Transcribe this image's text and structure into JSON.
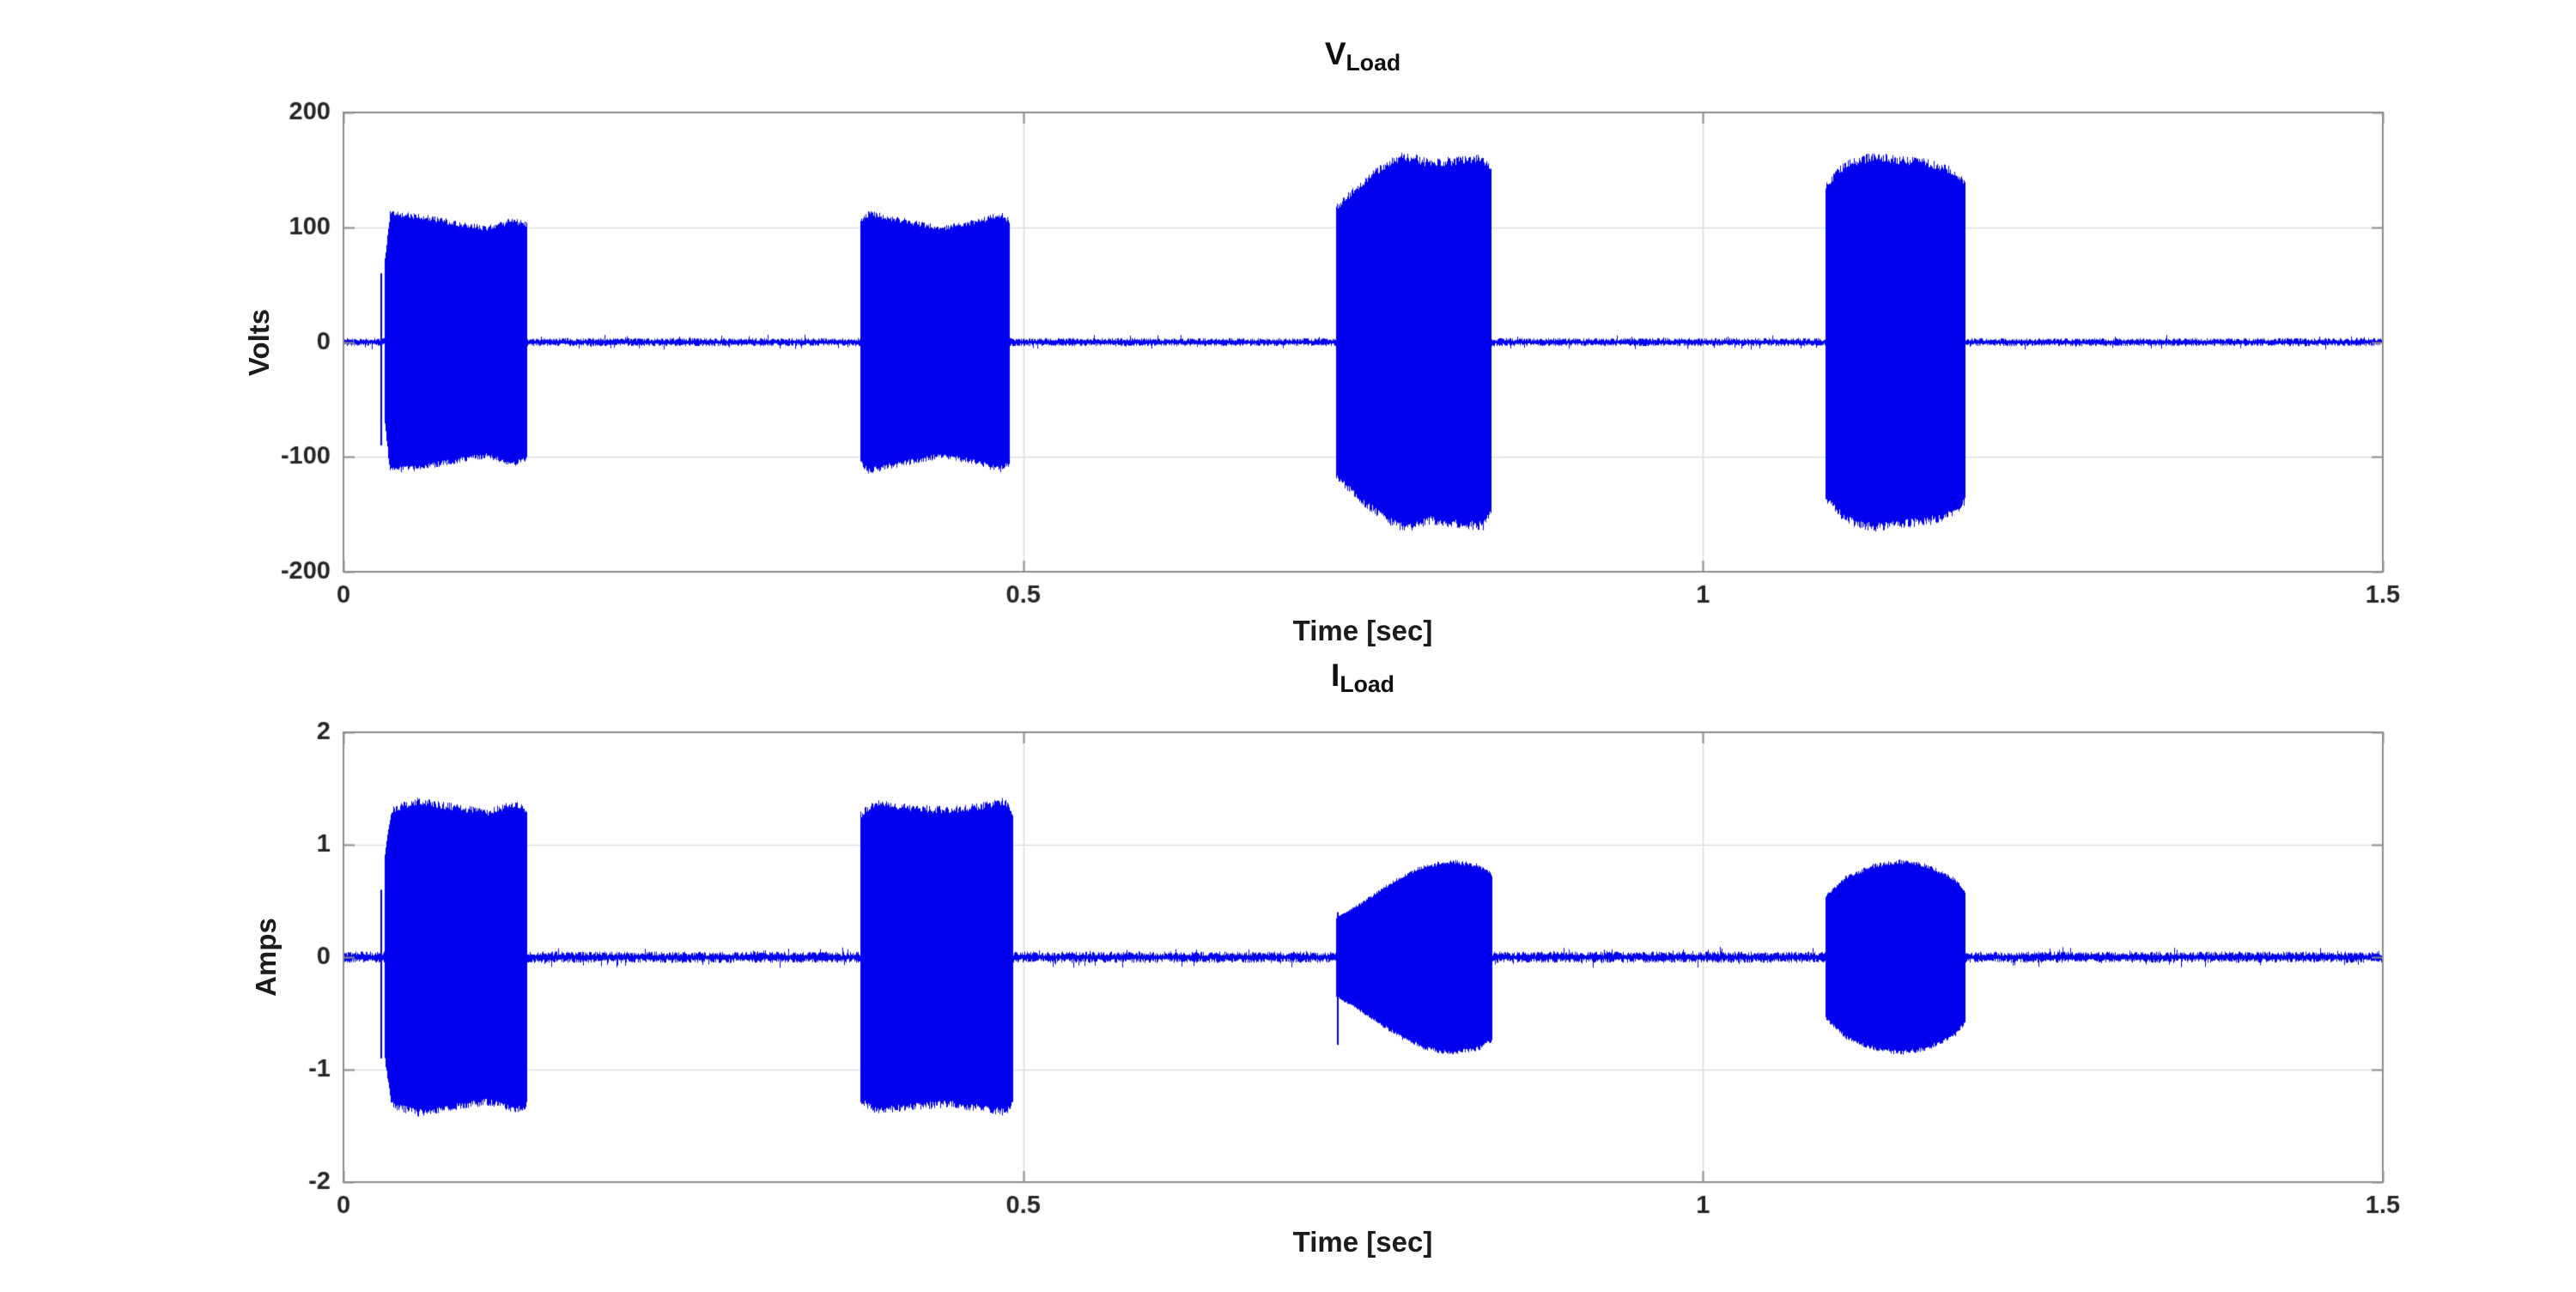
{
  "figure": {
    "background": "#ffffff"
  },
  "chart_data": [
    {
      "id": "v_load",
      "type": "line",
      "title": {
        "main": "V",
        "sub": "Load"
      },
      "xlabel": "Time [sec]",
      "ylabel": "Volts",
      "xlim": [
        0,
        1.5
      ],
      "ylim": [
        -200,
        200
      ],
      "xticks": [
        {
          "v": 0,
          "label": "0"
        },
        {
          "v": 0.5,
          "label": "0.5"
        },
        {
          "v": 1,
          "label": "1"
        },
        {
          "v": 1.5,
          "label": "1.5"
        }
      ],
      "yticks": [
        {
          "v": -200,
          "label": "-200"
        },
        {
          "v": -100,
          "label": "-100"
        },
        {
          "v": 0,
          "label": "0"
        },
        {
          "v": 100,
          "label": "100"
        },
        {
          "v": 200,
          "label": "200"
        }
      ],
      "grid": true,
      "legend": null,
      "line_color": "#0000EE",
      "baseline_noise": 3.5,
      "bursts": [
        {
          "envelope": [
            [
              0.03,
              70
            ],
            [
              0.034,
              113
            ],
            [
              0.055,
              111
            ],
            [
              0.085,
              104
            ],
            [
              0.105,
              100
            ],
            [
              0.125,
              107
            ],
            [
              0.135,
              103
            ]
          ]
        },
        {
          "envelope": [
            [
              0.38,
              106
            ],
            [
              0.386,
              113
            ],
            [
              0.415,
              106
            ],
            [
              0.44,
              100
            ],
            [
              0.465,
              106
            ],
            [
              0.483,
              112
            ],
            [
              0.49,
              107
            ]
          ]
        },
        {
          "envelope": [
            [
              0.73,
              118
            ],
            [
              0.745,
              136
            ],
            [
              0.765,
              155
            ],
            [
              0.78,
              164
            ],
            [
              0.8,
              157
            ],
            [
              0.82,
              160
            ],
            [
              0.838,
              162
            ],
            [
              0.844,
              150
            ]
          ]
        },
        {
          "envelope": [
            [
              1.09,
              138
            ],
            [
              1.105,
              157
            ],
            [
              1.125,
              163
            ],
            [
              1.145,
              160
            ],
            [
              1.165,
              158
            ],
            [
              1.185,
              150
            ],
            [
              1.193,
              140
            ]
          ]
        }
      ],
      "spikes": [
        {
          "t": 0.027,
          "lo": -90,
          "hi": 60
        }
      ]
    },
    {
      "id": "i_load",
      "type": "line",
      "title": {
        "main": "I",
        "sub": "Load"
      },
      "xlabel": "Time [sec]",
      "ylabel": "Amps",
      "xlim": [
        0,
        1.5
      ],
      "ylim": [
        -2,
        2
      ],
      "xticks": [
        {
          "v": 0,
          "label": "0"
        },
        {
          "v": 0.5,
          "label": "0.5"
        },
        {
          "v": 1,
          "label": "1"
        },
        {
          "v": 1.5,
          "label": "1.5"
        }
      ],
      "yticks": [
        {
          "v": -2,
          "label": "-2"
        },
        {
          "v": -1,
          "label": "-1"
        },
        {
          "v": 0,
          "label": "0"
        },
        {
          "v": 1,
          "label": "1"
        },
        {
          "v": 2,
          "label": "2"
        }
      ],
      "grid": true,
      "legend": null,
      "line_color": "#0000EE",
      "baseline_noise": 0.05,
      "bursts": [
        {
          "envelope": [
            [
              0.03,
              0.9
            ],
            [
              0.035,
              1.33
            ],
            [
              0.055,
              1.4
            ],
            [
              0.085,
              1.34
            ],
            [
              0.105,
              1.3
            ],
            [
              0.125,
              1.37
            ],
            [
              0.135,
              1.33
            ]
          ]
        },
        {
          "envelope": [
            [
              0.38,
              1.28
            ],
            [
              0.39,
              1.38
            ],
            [
              0.42,
              1.34
            ],
            [
              0.445,
              1.32
            ],
            [
              0.47,
              1.36
            ],
            [
              0.487,
              1.4
            ],
            [
              0.492,
              1.3
            ]
          ]
        },
        {
          "envelope": [
            [
              0.73,
              0.35
            ],
            [
              0.75,
              0.5
            ],
            [
              0.775,
              0.7
            ],
            [
              0.795,
              0.82
            ],
            [
              0.815,
              0.86
            ],
            [
              0.835,
              0.82
            ],
            [
              0.845,
              0.74
            ]
          ]
        },
        {
          "envelope": [
            [
              1.09,
              0.55
            ],
            [
              1.105,
              0.72
            ],
            [
              1.125,
              0.82
            ],
            [
              1.145,
              0.86
            ],
            [
              1.165,
              0.82
            ],
            [
              1.185,
              0.7
            ],
            [
              1.193,
              0.58
            ]
          ]
        }
      ],
      "spikes": [
        {
          "t": 0.027,
          "lo": -0.9,
          "hi": 0.6
        },
        {
          "t": 0.731,
          "lo": -0.78,
          "hi": 0.4
        }
      ]
    }
  ]
}
